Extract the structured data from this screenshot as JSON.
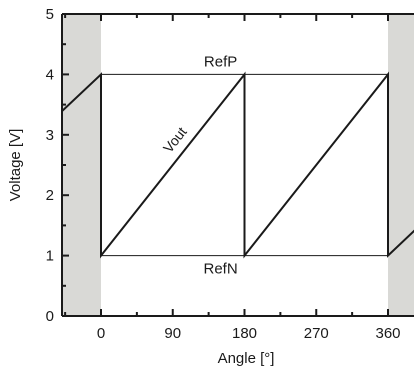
{
  "chart_data": {
    "type": "line",
    "title": "",
    "xlabel": "Angle [°]",
    "ylabel": "Voltage [V]",
    "xlim": [
      -62,
      600
    ],
    "ylim": [
      0,
      5
    ],
    "xticks": [
      0,
      90,
      180,
      270,
      360
    ],
    "yticks": [
      0,
      1,
      2,
      3,
      4,
      5
    ],
    "grid": false,
    "shaded_regions": [
      {
        "x": [
          -62,
          0
        ],
        "color": "#d9d9d6"
      },
      {
        "x": [
          360,
          600
        ],
        "color": "#d9d9d6"
      }
    ],
    "reference_lines": [
      {
        "name": "RefP",
        "y": 4
      },
      {
        "name": "RefN",
        "y": 1
      }
    ],
    "series": [
      {
        "name": "Vout",
        "x": [
          -62,
          0,
          0,
          180,
          180,
          360,
          360,
          600
        ],
        "y": [
          3.23,
          4,
          1,
          4,
          1,
          4,
          1,
          4
        ]
      }
    ],
    "colors": {
      "line": "#1a1a1a",
      "shade": "#d9d9d6",
      "axis": "#1a1a1a"
    }
  }
}
